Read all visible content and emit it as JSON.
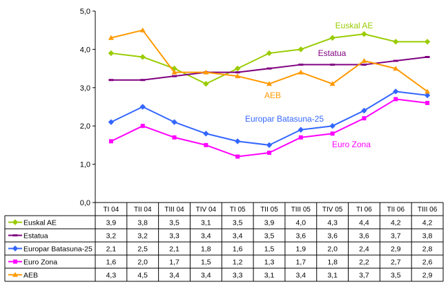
{
  "chart_data": {
    "type": "line",
    "title": "",
    "xlabel": "",
    "ylabel": "",
    "ylim": [
      0,
      5
    ],
    "yticks": [
      "0,0",
      "1,0",
      "2,0",
      "3,0",
      "4,0",
      "5,0"
    ],
    "grid": false,
    "legend": "data-table",
    "categories": [
      "TI 04",
      "TII 04",
      "TIII 04",
      "TIV 04",
      "TI 05",
      "TII 05",
      "TIII 05",
      "TIV 05",
      "TI 06",
      "TII 06",
      "TIII 06"
    ],
    "series": [
      {
        "name": "Euskal AE",
        "color": "#99cc00",
        "marker": "diamond",
        "values": [
          3.9,
          3.8,
          3.5,
          3.1,
          3.5,
          3.9,
          4.0,
          4.3,
          4.4,
          4.2,
          4.2
        ],
        "labels": [
          "3,9",
          "3,8",
          "3,5",
          "3,1",
          "3,5",
          "3,9",
          "4,0",
          "4,3",
          "4,4",
          "4,2",
          "4,2"
        ],
        "annotation": "Euskal AE"
      },
      {
        "name": "Estatua",
        "color": "#800080",
        "marker": "dash",
        "values": [
          3.2,
          3.2,
          3.3,
          3.4,
          3.4,
          3.5,
          3.6,
          3.6,
          3.6,
          3.7,
          3.8
        ],
        "labels": [
          "3,2",
          "3,2",
          "3,3",
          "3,4",
          "3,4",
          "3,5",
          "3,6",
          "3,6",
          "3,6",
          "3,7",
          "3,8"
        ],
        "annotation": "Estatua"
      },
      {
        "name": "Europar Batasuna-25",
        "color": "#3366ff",
        "marker": "diamond",
        "values": [
          2.1,
          2.5,
          2.1,
          1.8,
          1.6,
          1.5,
          1.9,
          2.0,
          2.4,
          2.9,
          2.8
        ],
        "labels": [
          "2,1",
          "2,5",
          "2,1",
          "1,8",
          "1,6",
          "1,5",
          "1,9",
          "2,0",
          "2,4",
          "2,9",
          "2,8"
        ],
        "annotation": "Europar Batasuna-25"
      },
      {
        "name": "Euro Zona",
        "color": "#ff00ff",
        "marker": "square",
        "values": [
          1.6,
          2.0,
          1.7,
          1.5,
          1.2,
          1.3,
          1.7,
          1.8,
          2.2,
          2.7,
          2.6
        ],
        "labels": [
          "1,6",
          "2,0",
          "1,7",
          "1,5",
          "1,2",
          "1,3",
          "1,7",
          "1,8",
          "2,2",
          "2,7",
          "2,6"
        ],
        "annotation": "Euro Zona"
      },
      {
        "name": "AEB",
        "color": "#ff9900",
        "marker": "triangle",
        "values": [
          4.3,
          4.5,
          3.4,
          3.4,
          3.3,
          3.1,
          3.4,
          3.1,
          3.7,
          3.5,
          2.9
        ],
        "labels": [
          "4,3",
          "4,5",
          "3,4",
          "3,4",
          "3,3",
          "3,1",
          "3,4",
          "3,1",
          "3,7",
          "3,5",
          "2,9"
        ],
        "annotation": "AEB"
      }
    ]
  }
}
